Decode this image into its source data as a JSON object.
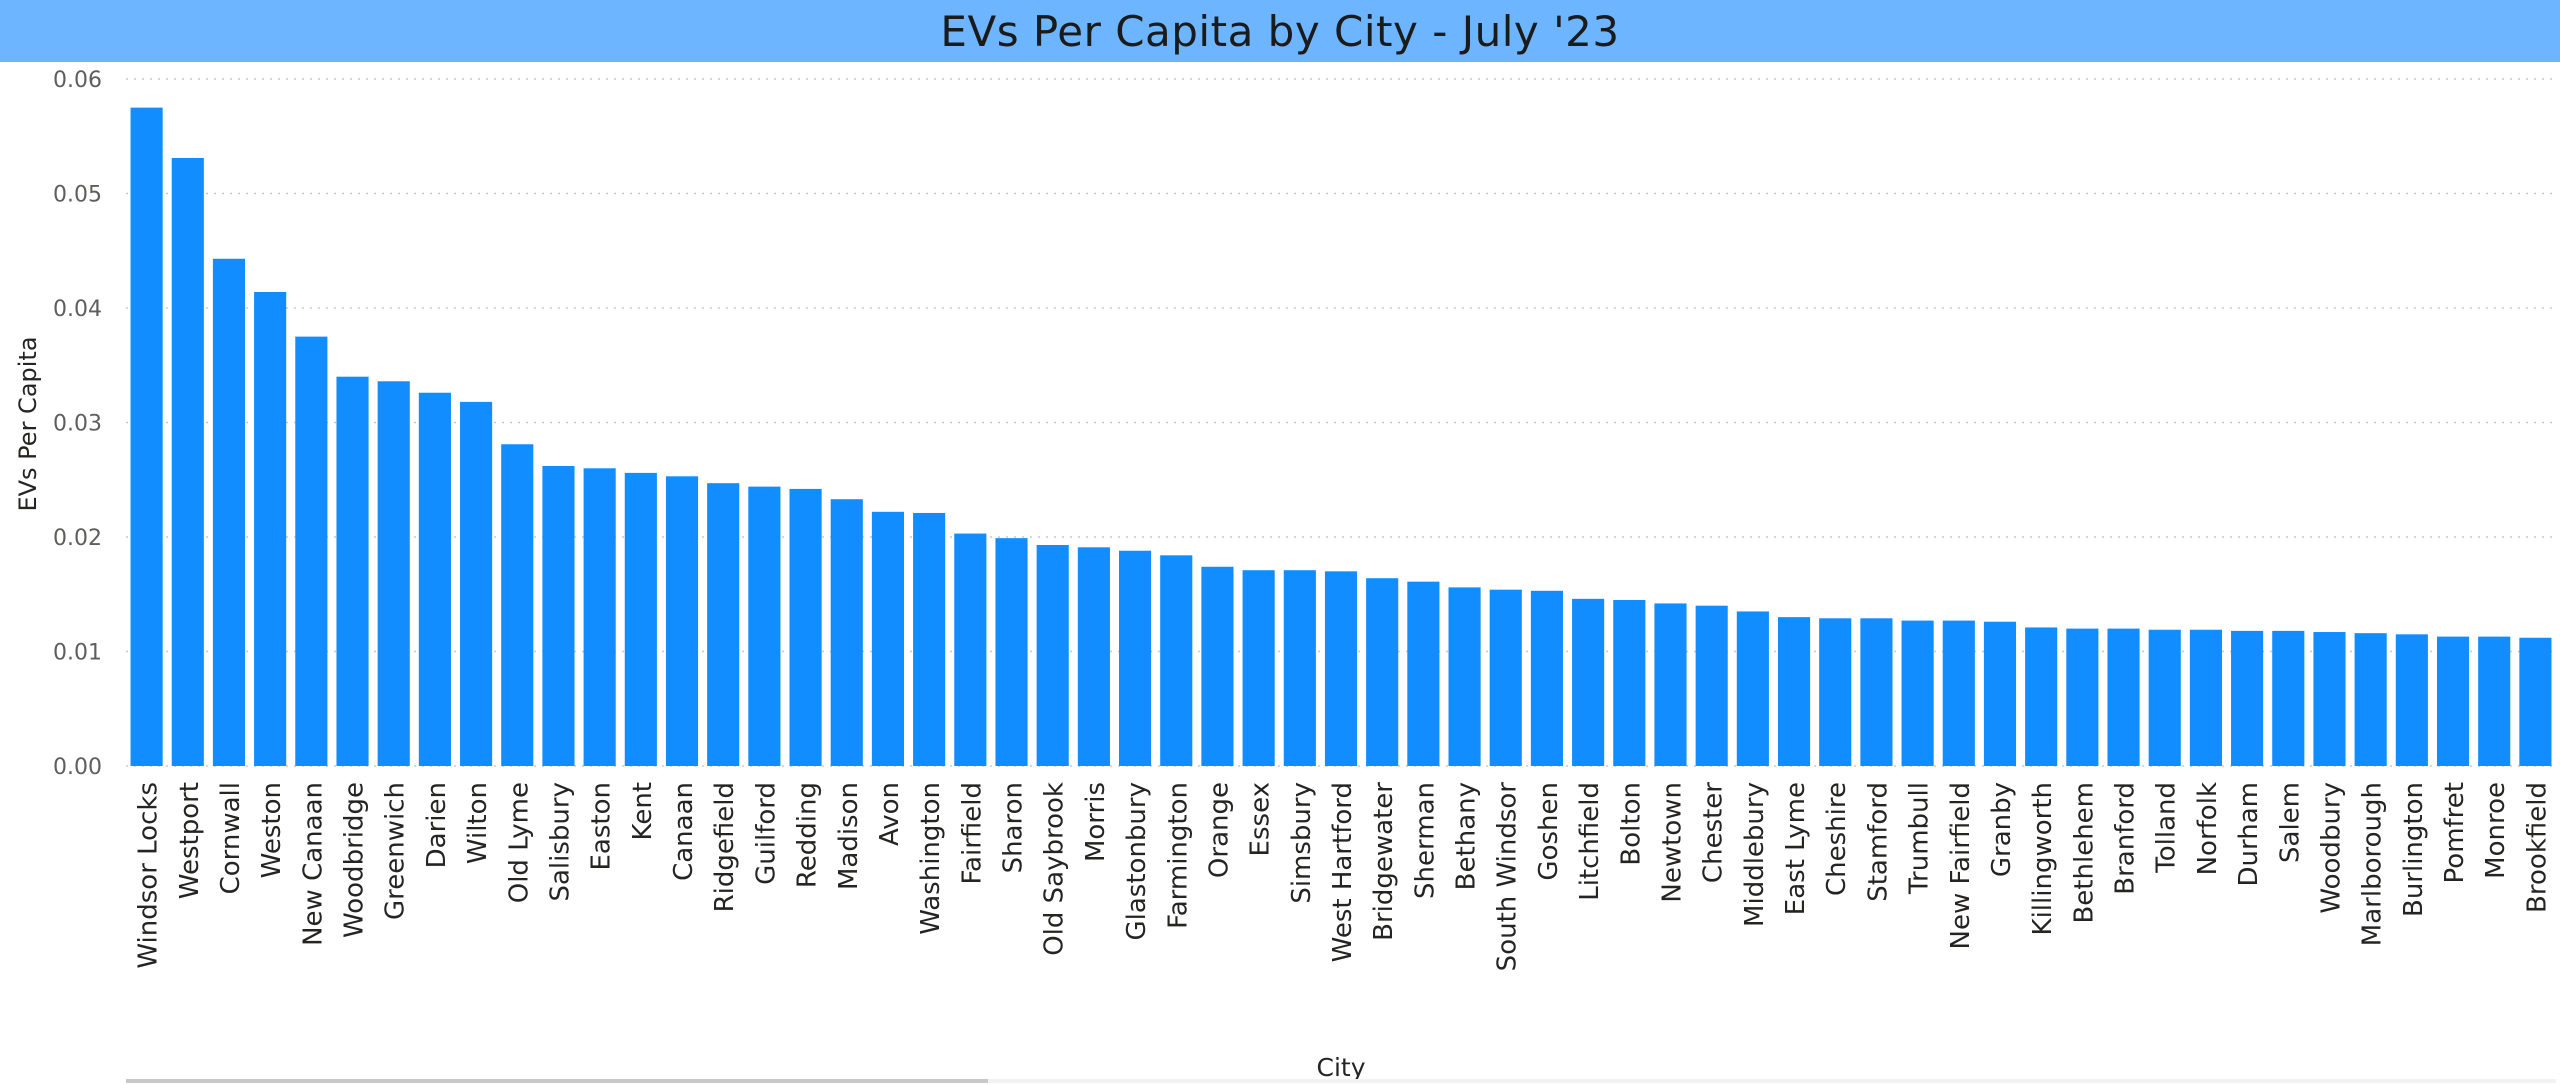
{
  "title_bar_color": "#6db5ff",
  "bar_color": "#118dff",
  "chart_data": {
    "type": "bar",
    "title": "EVs Per Capita by City - July '23",
    "xlabel": "City",
    "ylabel": "EVs Per Capita",
    "ylim": [
      0,
      0.06
    ],
    "yticks": [
      "0.00",
      "0.01",
      "0.02",
      "0.03",
      "0.04",
      "0.05",
      "0.06"
    ],
    "grid": "horizontal dotted",
    "categories": [
      "Windsor Locks",
      "Westport",
      "Cornwall",
      "Weston",
      "New Canaan",
      "Woodbridge",
      "Greenwich",
      "Darien",
      "Wilton",
      "Old Lyme",
      "Salisbury",
      "Easton",
      "Kent",
      "Canaan",
      "Ridgefield",
      "Guilford",
      "Redding",
      "Madison",
      "Avon",
      "Washington",
      "Fairfield",
      "Sharon",
      "Old Saybrook",
      "Morris",
      "Glastonbury",
      "Farmington",
      "Orange",
      "Essex",
      "Simsbury",
      "West Hartford",
      "Bridgewater",
      "Sherman",
      "Bethany",
      "South Windsor",
      "Goshen",
      "Litchfield",
      "Bolton",
      "Newtown",
      "Chester",
      "Middlebury",
      "East Lyme",
      "Cheshire",
      "Stamford",
      "Trumbull",
      "New Fairfield",
      "Granby",
      "Killingworth",
      "Bethlehem",
      "Branford",
      "Tolland",
      "Norfolk",
      "Durham",
      "Salem",
      "Woodbury",
      "Marlborough",
      "Burlington",
      "Pomfret",
      "Monroe",
      "Brookfield"
    ],
    "values": [
      0.0575,
      0.0531,
      0.0443,
      0.0414,
      0.0375,
      0.034,
      0.0336,
      0.0326,
      0.0318,
      0.0281,
      0.0262,
      0.026,
      0.0256,
      0.0253,
      0.0247,
      0.0244,
      0.0242,
      0.0233,
      0.0222,
      0.0221,
      0.0203,
      0.0199,
      0.0193,
      0.0191,
      0.0188,
      0.0184,
      0.0174,
      0.0171,
      0.0171,
      0.017,
      0.0164,
      0.0161,
      0.0156,
      0.0154,
      0.0153,
      0.0146,
      0.0145,
      0.0142,
      0.014,
      0.0135,
      0.013,
      0.0129,
      0.0129,
      0.0127,
      0.0127,
      0.0126,
      0.0121,
      0.012,
      0.012,
      0.0119,
      0.0119,
      0.0118,
      0.0118,
      0.0117,
      0.0116,
      0.0115,
      0.0113,
      0.0113,
      0.0112
    ]
  }
}
